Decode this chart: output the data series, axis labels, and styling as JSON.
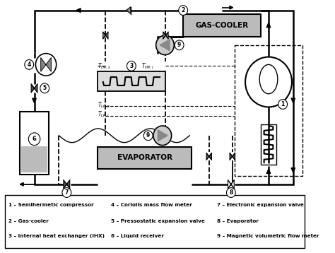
{
  "bg_color": "#ffffff",
  "legend_items": [
    [
      "1 – Semihermetic compressor",
      "4 – Coriolis mass flow meter",
      "7 – Electronic expansion valve"
    ],
    [
      "2 – Gas-cooler",
      "5 – Pressostatic expansion valve",
      "8 – Evaporator"
    ],
    [
      "3 – Internal heat exchanger (IHX)",
      "6 – Liquid receiver",
      "9 – Magnetic volumetric flow meter"
    ]
  ]
}
